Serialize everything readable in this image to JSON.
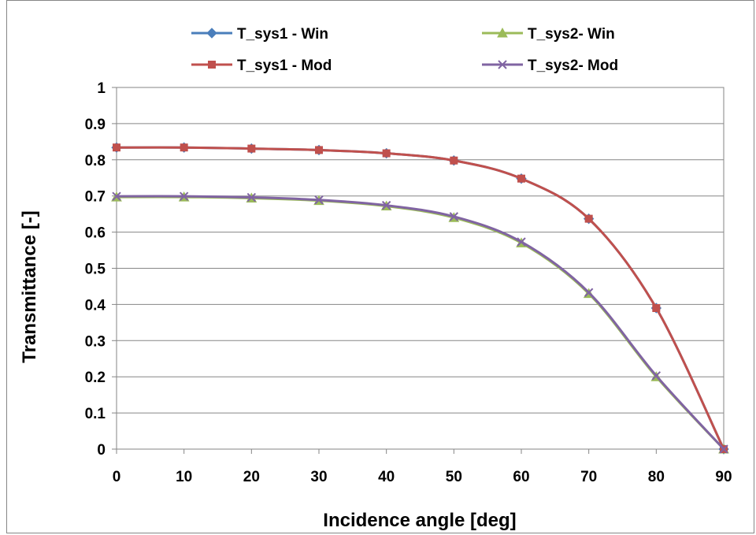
{
  "chart_data": {
    "type": "line",
    "title": "",
    "xlabel": "Incidence angle [deg]",
    "ylabel": "Transmittance [-]",
    "x": [
      0,
      10,
      20,
      30,
      40,
      50,
      60,
      70,
      80,
      90
    ],
    "xlim": [
      0,
      90
    ],
    "ylim": [
      0,
      1
    ],
    "x_ticks": [
      "0",
      "10",
      "20",
      "30",
      "40",
      "50",
      "60",
      "70",
      "80",
      "90"
    ],
    "y_ticks": [
      "0",
      "0.1",
      "0.2",
      "0.3",
      "0.4",
      "0.5",
      "0.6",
      "0.7",
      "0.8",
      "0.9",
      "1"
    ],
    "grid": "horizontal",
    "legend_position": "top",
    "series": [
      {
        "name": "T_sys1 - Win",
        "color": "#4a7ebb",
        "marker": "diamond",
        "values": [
          0.834,
          0.834,
          0.831,
          0.827,
          0.818,
          0.798,
          0.748,
          0.637,
          0.39,
          0.0
        ]
      },
      {
        "name": "T_sys2- Win",
        "color": "#9bbb59",
        "marker": "triangle",
        "values": [
          0.697,
          0.697,
          0.694,
          0.687,
          0.672,
          0.64,
          0.57,
          0.43,
          0.2,
          0.0
        ]
      },
      {
        "name": "T_sys1 -  Mod",
        "color": "#c0504d",
        "marker": "square",
        "values": [
          0.834,
          0.834,
          0.831,
          0.827,
          0.818,
          0.798,
          0.748,
          0.637,
          0.39,
          0.0
        ]
      },
      {
        "name": "T_sys2- Mod",
        "color": "#8064a2",
        "marker": "x",
        "values": [
          0.699,
          0.699,
          0.696,
          0.689,
          0.674,
          0.643,
          0.573,
          0.433,
          0.203,
          0.0
        ]
      }
    ]
  }
}
